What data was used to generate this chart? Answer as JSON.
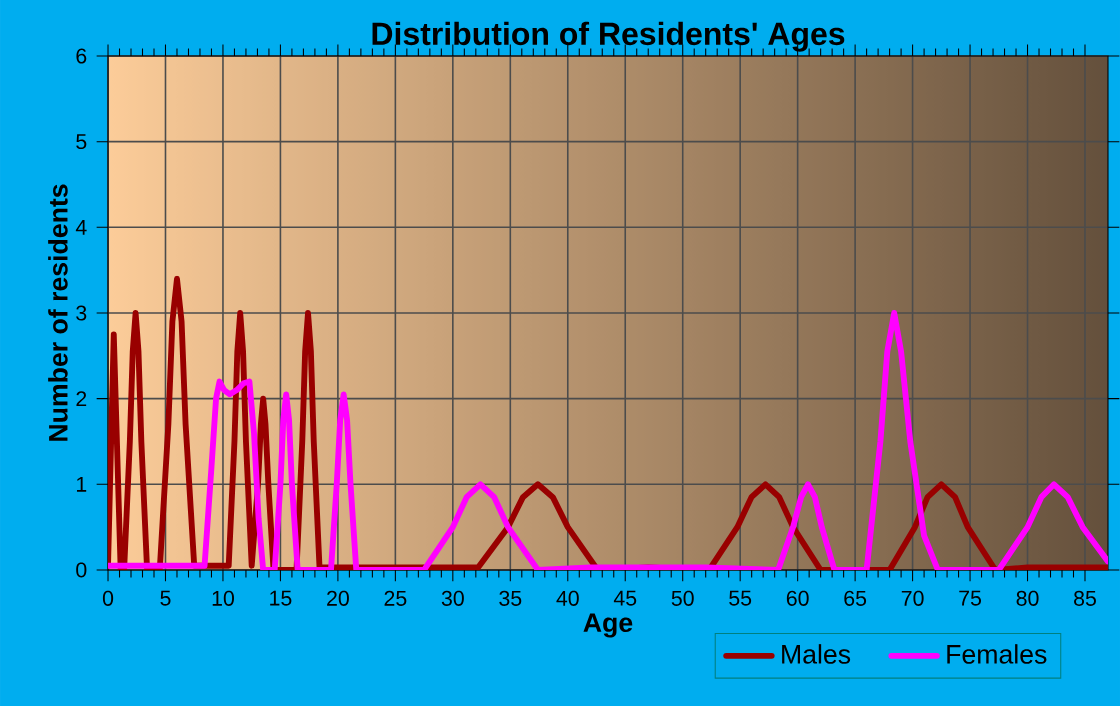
{
  "chart_data": {
    "type": "line",
    "title": "Distribution of Residents' Ages",
    "xlabel": "Age",
    "ylabel": "Number of residents",
    "xlim": [
      0,
      87
    ],
    "ylim": [
      0,
      6
    ],
    "xticks": [
      0,
      5,
      10,
      15,
      20,
      25,
      30,
      35,
      40,
      45,
      50,
      55,
      60,
      65,
      70,
      75,
      80,
      85
    ],
    "yticks": [
      0,
      1,
      2,
      3,
      4,
      5,
      6
    ],
    "grid": true,
    "legend": "bottom",
    "marker": "none",
    "line_style": "solid",
    "series": [
      {
        "name": "Males",
        "color": "#990000",
        "x": [
          0,
          0.5,
          1.1,
          1.4,
          1.9,
          2.15,
          2.4,
          2.65,
          2.9,
          3.4,
          4.5,
          5.25,
          5.6,
          6.0,
          6.4,
          6.75,
          7.5,
          10.5,
          11,
          11.25,
          11.5,
          11.75,
          12,
          12.5,
          13.05,
          13.3,
          13.5,
          13.7,
          13.95,
          14.4,
          16.4,
          16.9,
          17.15,
          17.4,
          17.65,
          17.9,
          18.4,
          32.2,
          34.8,
          36.1,
          37.4,
          38.7,
          40,
          42.6,
          47,
          52.3,
          54.75,
          55.98,
          57.2,
          58.4,
          59.6,
          62,
          68,
          70.2,
          71.3,
          72.5,
          73.7,
          74.8,
          77.2,
          80,
          87
        ],
        "values": [
          0.05,
          2.75,
          0,
          0,
          1.5,
          2.55,
          3.0,
          2.55,
          1.5,
          0,
          0,
          1.7,
          2.9,
          3.4,
          2.9,
          1.7,
          0.05,
          0.05,
          1.5,
          2.55,
          3.0,
          2.55,
          1.5,
          0.05,
          1.0,
          1.7,
          2.0,
          1.7,
          1.0,
          0,
          0,
          1.5,
          2.55,
          3.0,
          2.55,
          1.5,
          0.03,
          0.03,
          0.5,
          0.85,
          1.0,
          0.85,
          0.5,
          0,
          0.03,
          0,
          0.5,
          0.85,
          1.0,
          0.85,
          0.5,
          0,
          0,
          0.5,
          0.85,
          1.0,
          0.85,
          0.5,
          0,
          0.03,
          0.03
        ]
      },
      {
        "name": "Females",
        "color": "#ff00ff",
        "x": [
          0,
          8.4,
          9.0,
          9.4,
          9.7,
          10.1,
          10.6,
          11.2,
          11.8,
          12.3,
          12.7,
          13.1,
          13.5,
          14.5,
          15.0,
          15.25,
          15.5,
          15.75,
          16,
          16.5,
          19.4,
          19.9,
          20.2,
          20.5,
          20.8,
          21.1,
          21.6,
          27.5,
          30,
          31.2,
          32.4,
          33.6,
          34.8,
          37.4,
          42,
          52,
          58.3,
          59.6,
          60.3,
          60.9,
          61.5,
          62.1,
          63.2,
          66,
          67.2,
          67.8,
          68.4,
          69.0,
          69.8,
          71,
          72.2,
          77.5,
          80,
          81.2,
          82.3,
          83.5,
          84.8,
          87
        ],
        "values": [
          0.05,
          0.05,
          1.2,
          2.0,
          2.2,
          2.1,
          2.05,
          2.1,
          2.18,
          2.2,
          1.6,
          0.6,
          0,
          0,
          1.0,
          1.75,
          2.05,
          1.75,
          1.0,
          0,
          0,
          1.0,
          1.75,
          2.05,
          1.75,
          1.0,
          0,
          0,
          0.5,
          0.85,
          1.0,
          0.85,
          0.5,
          0,
          0.03,
          0.03,
          0,
          0.5,
          0.85,
          1.0,
          0.85,
          0.5,
          0,
          0,
          1.5,
          2.55,
          3.0,
          2.55,
          1.5,
          0.4,
          0,
          0,
          0.5,
          0.85,
          1.0,
          0.85,
          0.5,
          0.1
        ]
      }
    ]
  }
}
